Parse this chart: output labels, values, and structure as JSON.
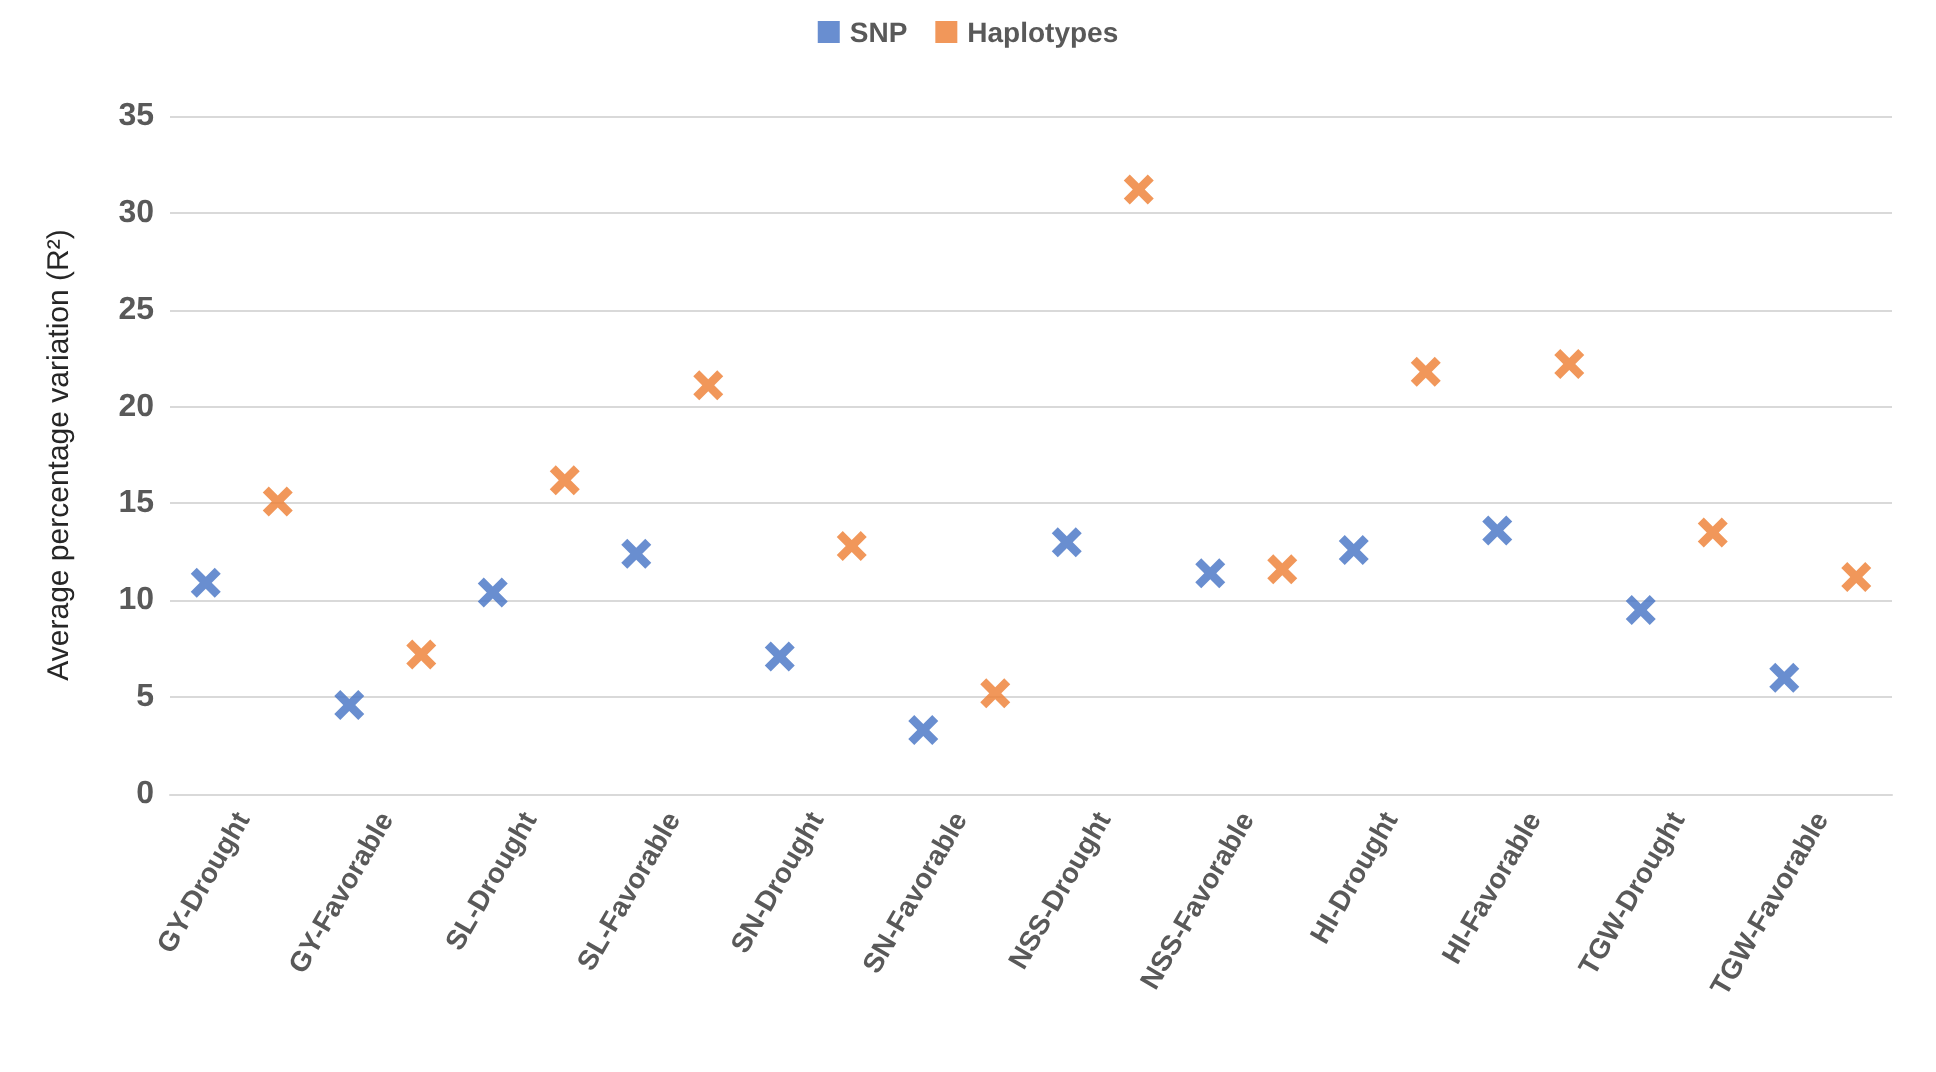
{
  "chart_data": {
    "type": "scatter",
    "ylabel": "Average percentage variation (R²)",
    "categories": [
      "GY-Drought",
      "GY-Favorable",
      "SL-Drought",
      "SL-Favorable",
      "SN-Drought",
      "SN-Favorable",
      "NSS-Drought",
      "NSS-Favorable",
      "HI-Drought",
      "HI-Favorable",
      "TGW-Drought",
      "TGW-Favorable"
    ],
    "series": [
      {
        "name": "SNP",
        "color": "#4472c4",
        "values": [
          10.9,
          4.6,
          10.4,
          12.4,
          7.1,
          3.3,
          13.0,
          11.4,
          12.6,
          13.6,
          9.5,
          6.0
        ]
      },
      {
        "name": "Haplotypes",
        "color": "#ed7d31",
        "values": [
          15.1,
          7.2,
          16.2,
          21.1,
          12.8,
          5.2,
          31.2,
          11.6,
          21.8,
          22.2,
          13.5,
          11.2
        ]
      }
    ],
    "ylim": [
      0,
      35
    ],
    "yticks": [
      0,
      5,
      10,
      15,
      20,
      25,
      30,
      35
    ],
    "grid": "y",
    "legend": "top",
    "marker": "cross"
  }
}
